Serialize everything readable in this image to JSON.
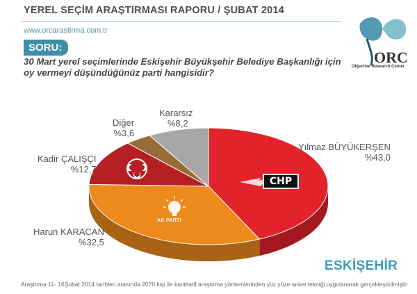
{
  "header": {
    "title": "YEREL SEÇİM ARAŞTIRMASI RAPORU / ŞUBAT 2014",
    "website": "www.orcarastirma.com.tr"
  },
  "logo": {
    "name": "ORC",
    "tagline": "Objective Research Center"
  },
  "question": {
    "label": "SORU:",
    "text": "30 Mart yerel seçimlerinde Eskişehir Büyükşehir Belediye Başkanlığı için oy vermeyi düşündüğünüz parti hangisidir?"
  },
  "party_logos": {
    "chp": "CHP",
    "akp": "AK PARTİ"
  },
  "chart_data": {
    "type": "pie",
    "style": "3d",
    "start_angle_deg": -90,
    "slices": [
      {
        "label": "Yılmaz BÜYÜKERŞEN",
        "value_text": "%43,0",
        "value": 43.0,
        "color": "#e3232b"
      },
      {
        "label": "Harun KARACAN",
        "value_text": "%32,5",
        "value": 32.5,
        "color": "#ec8a1c"
      },
      {
        "label": "Kadir ÇALIŞÇI",
        "value_text": "%12,7",
        "value": 12.7,
        "color": "#b52025"
      },
      {
        "label": "Diğer",
        "value_text": "%3,6",
        "value": 3.6,
        "color": "#9a6b3a"
      },
      {
        "label": "Kararsız",
        "value_text": "%8,2",
        "value": 8.2,
        "color": "#a7a7a7"
      }
    ]
  },
  "footer": {
    "city": "ESKİŞEHİR",
    "note": "Araştırma 11- 16Şubat 2014 tarihleri arasında 2070 kişi ile kantitatif araştırma yöntemlerinden yüz yüze anket tekniği uygulanarak gerçekleştirilmiştir"
  }
}
